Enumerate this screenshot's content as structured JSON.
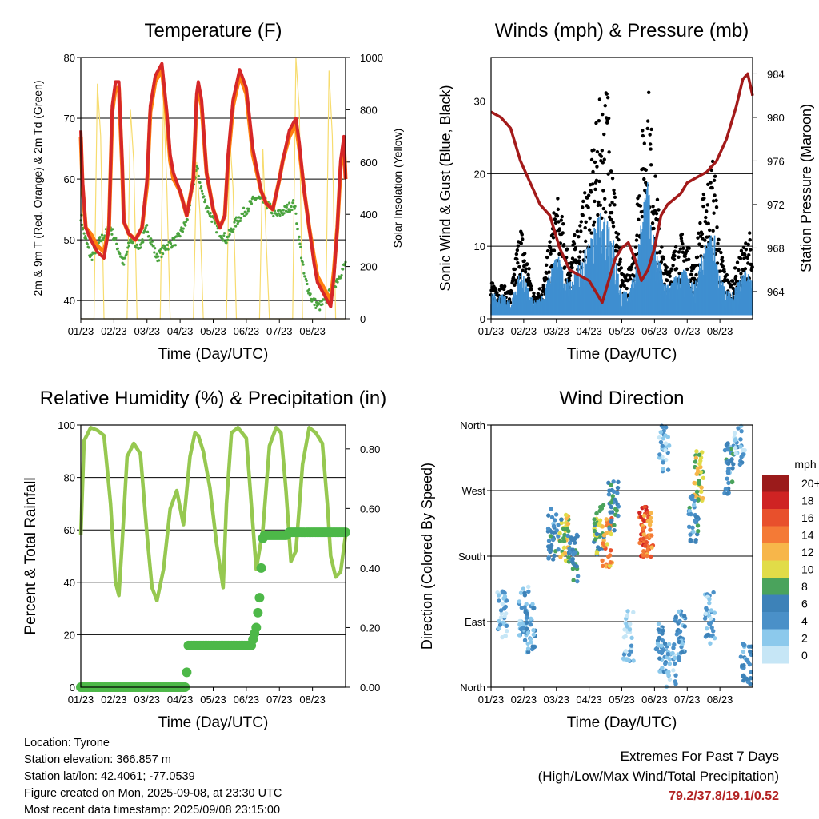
{
  "chart_data": [
    {
      "type": "line",
      "title": "Temperature (F)",
      "xlabel": "Time (Day/UTC)",
      "ylabel": "2m & 9m T (Red, Orange) & 2m Td (Green)",
      "ylabel_right": "Solar Insolation (Yellow)",
      "ylim": [
        37,
        80
      ],
      "ylim_right": [
        0,
        1000
      ],
      "yticks": [
        40,
        50,
        60,
        70,
        80
      ],
      "yticks_right": [
        0,
        200,
        400,
        600,
        800,
        1000
      ],
      "x_tick_labels": [
        "01/23",
        "02/23",
        "03/23",
        "04/23",
        "05/23",
        "06/23",
        "07/23",
        "08/23"
      ],
      "grid": true,
      "series": [
        {
          "name": "2m T",
          "color": "#d62728",
          "x": [
            0,
            0.05,
            0.15,
            0.3,
            0.5,
            0.7,
            0.85,
            0.95,
            1.05,
            1.15,
            1.25,
            1.3,
            1.45,
            1.65,
            1.85,
            2.0,
            2.1,
            2.25,
            2.45,
            2.6,
            2.7,
            2.8,
            3.0,
            3.2,
            3.4,
            3.5,
            3.55,
            3.65,
            3.8,
            4.0,
            4.2,
            4.35,
            4.45,
            4.6,
            4.8,
            5.0,
            5.2,
            5.45,
            5.6,
            5.8,
            6.0,
            6.1,
            6.3,
            6.5,
            6.6,
            6.75,
            6.9,
            7.05,
            7.15,
            7.25,
            7.35,
            7.45,
            7.55,
            7.65,
            7.75,
            7.85,
            7.95,
            8.0
          ],
          "values": [
            68,
            60,
            52,
            50,
            48,
            47,
            52,
            72,
            76,
            76,
            63,
            53,
            51,
            50,
            52,
            60,
            72,
            77,
            79,
            71,
            64,
            61,
            58,
            54,
            60,
            74,
            76,
            73,
            61,
            55,
            52,
            54,
            64,
            73,
            78,
            75,
            65,
            58,
            56,
            55,
            60,
            63,
            68,
            70,
            66,
            58,
            52,
            46,
            43,
            42,
            41,
            40,
            39,
            44,
            52,
            63,
            67,
            60
          ]
        },
        {
          "name": "9m T",
          "color": "#ff7f0e",
          "x": [
            0,
            0.05,
            0.15,
            0.3,
            0.5,
            0.7,
            0.85,
            0.95,
            1.05,
            1.15,
            1.25,
            1.3,
            1.45,
            1.65,
            1.85,
            2.0,
            2.1,
            2.25,
            2.45,
            2.6,
            2.7,
            2.8,
            3.0,
            3.2,
            3.4,
            3.5,
            3.55,
            3.65,
            3.8,
            4.0,
            4.2,
            4.35,
            4.45,
            4.6,
            4.8,
            5.0,
            5.2,
            5.45,
            5.6,
            5.8,
            6.0,
            6.1,
            6.3,
            6.5,
            6.6,
            6.75,
            6.9,
            7.05,
            7.15,
            7.25,
            7.35,
            7.45,
            7.55,
            7.65,
            7.75,
            7.85,
            7.95,
            8.0
          ],
          "values": [
            67,
            59,
            52,
            51,
            49,
            48,
            52,
            71,
            75,
            75,
            62,
            53,
            51,
            50,
            52,
            59,
            71,
            76,
            78,
            70,
            63,
            60,
            58,
            54,
            60,
            73,
            75,
            72,
            61,
            55,
            52,
            54,
            63,
            72,
            77,
            74,
            64,
            58,
            56,
            55,
            60,
            63,
            67,
            69,
            65,
            58,
            52,
            47,
            44,
            43,
            42,
            41,
            40,
            45,
            52,
            62,
            66,
            60
          ]
        },
        {
          "name": "2m Td",
          "color": "#4aa33e",
          "x": [
            0,
            0.1,
            0.3,
            0.6,
            0.9,
            1.1,
            1.3,
            1.5,
            1.8,
            2.0,
            2.3,
            2.6,
            2.9,
            3.2,
            3.5,
            3.7,
            3.85,
            4.1,
            4.4,
            4.7,
            5.0,
            5.3,
            5.6,
            5.9,
            6.2,
            6.45,
            6.6,
            6.75,
            7.0,
            7.2,
            7.4,
            7.6,
            7.8,
            8.0
          ],
          "values": [
            54,
            51,
            47,
            50,
            52,
            49,
            46,
            50,
            49,
            52,
            47,
            49,
            50,
            53,
            62,
            57,
            55,
            52,
            50,
            53,
            55,
            57,
            56,
            54,
            55,
            56,
            50,
            44,
            40,
            39,
            40,
            42,
            44,
            46
          ]
        },
        {
          "name": "Solar Insolation",
          "color": "#f7dc6f",
          "axis": "right",
          "x": [
            0,
            0.4,
            0.5,
            0.6,
            0.7,
            1.4,
            1.5,
            1.6,
            1.7,
            2.4,
            2.5,
            2.6,
            2.7,
            3.4,
            3.5,
            3.6,
            3.7,
            4.4,
            4.5,
            4.6,
            4.7,
            5.4,
            5.5,
            5.6,
            5.7,
            6.4,
            6.5,
            6.6,
            6.7,
            7.4,
            7.5,
            7.6,
            7.7,
            8.0
          ],
          "values": [
            0,
            0,
            900,
            700,
            0,
            0,
            800,
            600,
            0,
            0,
            850,
            500,
            0,
            0,
            600,
            400,
            0,
            0,
            700,
            500,
            0,
            0,
            650,
            300,
            0,
            0,
            1000,
            800,
            0,
            0,
            950,
            700,
            0,
            0
          ]
        }
      ]
    },
    {
      "type": "scatter",
      "title": "Winds (mph) & Pressure (mb)",
      "xlabel": "Time (Day/UTC)",
      "ylabel": "Sonic Wind & Gust (Blue, Black)",
      "ylabel_right": "Station Pressure (Maroon)",
      "ylim": [
        0,
        36
      ],
      "ylim_right": [
        961.5,
        985.5
      ],
      "yticks": [
        0,
        10,
        20,
        30
      ],
      "yticks_right": [
        964,
        968,
        972,
        976,
        980,
        984
      ],
      "x_tick_labels": [
        "01/23",
        "02/23",
        "03/23",
        "04/23",
        "05/23",
        "06/23",
        "07/23",
        "08/23"
      ],
      "grid": true,
      "series": [
        {
          "name": "Sonic Wind",
          "color": "#3f8fd0",
          "x": [
            0,
            0.3,
            0.6,
            0.9,
            1.1,
            1.3,
            1.6,
            2.0,
            2.2,
            2.4,
            2.6,
            3.0,
            3.3,
            3.6,
            3.8,
            4.0,
            4.3,
            4.6,
            4.8,
            5.0,
            5.3,
            5.6,
            5.9,
            6.2,
            6.5,
            6.8,
            7.0,
            7.3,
            7.6,
            7.9,
            8.0
          ],
          "values": [
            3,
            3,
            2,
            6,
            4,
            2,
            3,
            8,
            6,
            4,
            6,
            9,
            12,
            14,
            8,
            3,
            4,
            12,
            16,
            10,
            4,
            5,
            6,
            4,
            8,
            11,
            5,
            3,
            5,
            6,
            4
          ]
        },
        {
          "name": "Gust",
          "color": "#000000",
          "x": [
            0,
            0.3,
            0.6,
            0.9,
            1.1,
            1.3,
            1.6,
            2.0,
            2.2,
            2.4,
            2.6,
            3.0,
            3.3,
            3.6,
            3.8,
            4.0,
            4.3,
            4.6,
            4.8,
            5.0,
            5.3,
            5.6,
            5.9,
            6.2,
            6.5,
            6.8,
            7.0,
            7.3,
            7.6,
            7.9,
            8.0
          ],
          "values": [
            4,
            4,
            3,
            11,
            7,
            3,
            4,
            14,
            11,
            7,
            10,
            16,
            24,
            27,
            14,
            5,
            6,
            20,
            27,
            17,
            6,
            8,
            10,
            6,
            14,
            19,
            8,
            4,
            7,
            10,
            6
          ]
        },
        {
          "name": "Station Pressure",
          "color": "#a31a1a",
          "axis": "right",
          "x": [
            0,
            0.3,
            0.6,
            0.9,
            1.2,
            1.5,
            1.8,
            2.1,
            2.4,
            2.7,
            3.0,
            3.2,
            3.4,
            3.6,
            3.8,
            4.0,
            4.2,
            4.4,
            4.6,
            4.8,
            5.0,
            5.2,
            5.4,
            5.6,
            5.8,
            6.0,
            6.3,
            6.6,
            6.9,
            7.2,
            7.5,
            7.7,
            7.85,
            8.0
          ],
          "values": [
            980.5,
            980,
            979,
            976,
            974,
            972,
            971,
            968,
            966,
            965.5,
            965,
            964,
            963,
            965,
            967,
            968,
            968.5,
            967,
            965,
            966,
            968,
            971,
            972,
            972.5,
            973,
            974,
            974.5,
            975,
            976,
            978,
            981,
            983.5,
            984,
            982
          ]
        }
      ]
    },
    {
      "type": "line",
      "title": "Relative Humidity (%) & Precipitation (in)",
      "xlabel": "Time (Day/UTC)",
      "ylabel": "Percent & Total Rainfall",
      "ylim": [
        0,
        100
      ],
      "ylim_right": [
        0,
        0.88
      ],
      "yticks": [
        0,
        20,
        40,
        60,
        80,
        100
      ],
      "yticks_right": [
        0.0,
        0.2,
        0.4,
        0.6,
        0.8
      ],
      "ytick_labels_right": [
        "0.00",
        "0.20",
        "0.40",
        "0.60",
        "0.80"
      ],
      "x_tick_labels": [
        "01/23",
        "02/23",
        "03/23",
        "04/23",
        "05/23",
        "06/23",
        "07/23",
        "08/23"
      ],
      "grid": true,
      "series": [
        {
          "name": "Relative Humidity",
          "color": "#96c850",
          "x": [
            0,
            0.1,
            0.3,
            0.5,
            0.7,
            0.9,
            1.05,
            1.15,
            1.25,
            1.4,
            1.6,
            1.8,
            2.0,
            2.15,
            2.3,
            2.5,
            2.7,
            2.9,
            3.1,
            3.3,
            3.45,
            3.55,
            3.7,
            3.9,
            4.1,
            4.3,
            4.4,
            4.55,
            4.75,
            5.0,
            5.15,
            5.3,
            5.5,
            5.7,
            5.9,
            6.05,
            6.2,
            6.35,
            6.5,
            6.7,
            6.9,
            7.1,
            7.3,
            7.45,
            7.55,
            7.7,
            7.85,
            8.0
          ],
          "values": [
            58,
            94,
            99,
            98,
            96,
            70,
            40,
            35,
            55,
            88,
            93,
            89,
            58,
            38,
            33,
            45,
            68,
            75,
            62,
            88,
            97,
            96,
            90,
            76,
            55,
            38,
            70,
            97,
            99,
            95,
            70,
            45,
            60,
            92,
            99,
            97,
            75,
            48,
            52,
            85,
            99,
            97,
            93,
            70,
            50,
            42,
            44,
            58
          ]
        },
        {
          "name": "Total Precipitation",
          "color": "#4db848",
          "axis": "right",
          "x": [
            0,
            3.15,
            3.2,
            3.25,
            3.3,
            5.15,
            5.2,
            5.3,
            5.4,
            5.45,
            5.5,
            5.55,
            6.2,
            6.3,
            6.5,
            8.0
          ],
          "values": [
            0,
            0,
            0.05,
            0.14,
            0.14,
            0.14,
            0.16,
            0.2,
            0.3,
            0.4,
            0.5,
            0.51,
            0.51,
            0.52,
            0.52,
            0.52
          ]
        }
      ]
    },
    {
      "type": "scatter",
      "title": "Wind Direction",
      "xlabel": "Time (Day/UTC)",
      "ylabel": "Direction (Colored By Speed)",
      "ylim": [
        0,
        360
      ],
      "yticks": [
        0,
        90,
        180,
        270,
        360
      ],
      "ytick_labels": [
        "North",
        "East",
        "South",
        "West",
        "North"
      ],
      "x_tick_labels": [
        "01/23",
        "02/23",
        "03/23",
        "04/23",
        "05/23",
        "06/23",
        "07/23",
        "08/23"
      ],
      "grid": true,
      "colorbar": {
        "title": "mph",
        "labels": [
          "0",
          "2",
          "4",
          "6",
          "8",
          "10",
          "12",
          "14",
          "16",
          "18",
          "20+"
        ],
        "colors": [
          "#c6e6f6",
          "#8cc9ec",
          "#4a90c8",
          "#3d82b8",
          "#4aa35c",
          "#e1dc48",
          "#f7b64a",
          "#f47a36",
          "#e8502c",
          "#cf2323",
          "#9b1b1b"
        ]
      },
      "clusters": [
        {
          "x": 0.35,
          "dir": 100,
          "speed": 2
        },
        {
          "x": 1.0,
          "dir": 105,
          "speed": 3
        },
        {
          "x": 1.2,
          "dir": 80,
          "speed": 4
        },
        {
          "x": 1.9,
          "dir": 210,
          "speed": 5
        },
        {
          "x": 2.25,
          "dir": 205,
          "speed": 9
        },
        {
          "x": 2.5,
          "dir": 180,
          "speed": 6
        },
        {
          "x": 3.3,
          "dir": 215,
          "speed": 8
        },
        {
          "x": 3.55,
          "dir": 200,
          "speed": 13
        },
        {
          "x": 3.75,
          "dir": 250,
          "speed": 6
        },
        {
          "x": 4.2,
          "dir": 70,
          "speed": 1
        },
        {
          "x": 4.7,
          "dir": 215,
          "speed": 16
        },
        {
          "x": 4.8,
          "dir": 210,
          "speed": 14
        },
        {
          "x": 5.2,
          "dir": 55,
          "speed": 4
        },
        {
          "x": 5.5,
          "dir": 25,
          "speed": 3
        },
        {
          "x": 5.8,
          "dir": 70,
          "speed": 4
        },
        {
          "x": 5.3,
          "dir": 330,
          "speed": 2
        },
        {
          "x": 6.35,
          "dir": 290,
          "speed": 10
        },
        {
          "x": 6.2,
          "dir": 230,
          "speed": 5
        },
        {
          "x": 6.7,
          "dir": 95,
          "speed": 3
        },
        {
          "x": 7.3,
          "dir": 300,
          "speed": 5
        },
        {
          "x": 7.8,
          "dir": 25,
          "speed": 4
        },
        {
          "x": 7.6,
          "dir": 340,
          "speed": 3
        }
      ]
    }
  ],
  "info": {
    "location": "Location: Tyrone",
    "elevation": "Station elevation: 366.857 m",
    "latlon": "Station lat/lon: 42.4061; -77.0539",
    "created": "Figure created on Mon, 2025-09-08, at 23:30 UTC",
    "timestamp": "Most recent data timestamp: 2025/09/08 23:15:00"
  },
  "extremes": {
    "title": "Extremes For Past 7 Days",
    "subtitle": "(High/Low/Max Wind/Total Precipitation)",
    "values": "79.2/37.8/19.1/0.52"
  }
}
